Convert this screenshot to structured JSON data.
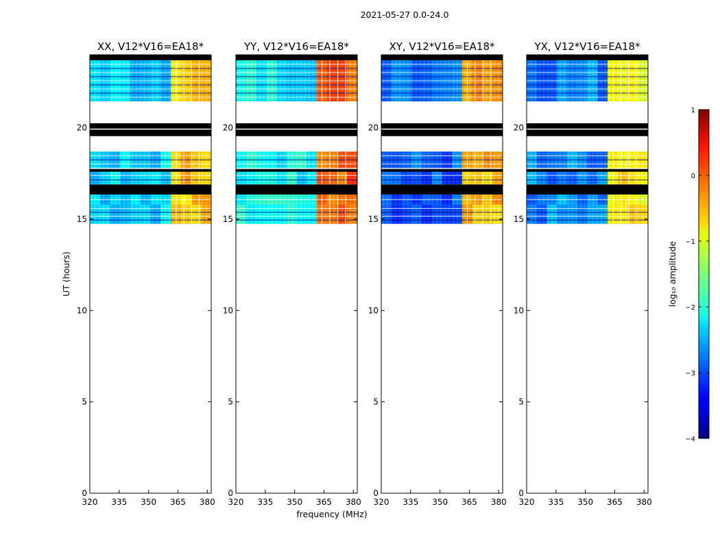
{
  "figure": {
    "suptitle": "2021-05-27 0.0-24.0",
    "xlabel": "frequency (MHz)",
    "ylabel": "UT (hours)"
  },
  "chart_data": {
    "type": "heatmap",
    "title": "2021-05-27 0.0-24.0",
    "xlabel": "frequency (MHz)",
    "ylabel": "UT (hours)",
    "xlim": [
      320,
      382
    ],
    "ylim": [
      0,
      24
    ],
    "xticks": [
      320,
      335,
      350,
      365,
      380
    ],
    "yticks": [
      0,
      5,
      10,
      15,
      20
    ],
    "panels": [
      {
        "title": "XX, V12*V16=EA18*"
      },
      {
        "title": "YY, V12*V16=EA18*"
      },
      {
        "title": "XY, V12*V16=EA18*"
      },
      {
        "title": "YX, V12*V16=EA18*"
      }
    ],
    "data_bands_ut": [
      [
        14.75,
        15.8
      ],
      [
        15.8,
        16.35
      ],
      [
        16.9,
        17.65
      ],
      [
        17.8,
        18.7
      ],
      [
        21.45,
        23.7
      ]
    ],
    "blank_bands_ut": [
      [
        18.7,
        19.55
      ],
      [
        20.25,
        21.45
      ]
    ],
    "flagged_bands_ut": [
      [
        19.55,
        20.25
      ],
      [
        16.35,
        16.9
      ],
      [
        23.7,
        24.0
      ]
    ],
    "bright_freq_range_mhz": [
      360,
      380
    ],
    "colorbar": {
      "label": "log₁₀ amplitude",
      "range": [
        -4,
        1
      ],
      "ticks": [
        "1",
        "0",
        "−1",
        "−2",
        "−3",
        "−4"
      ]
    }
  }
}
